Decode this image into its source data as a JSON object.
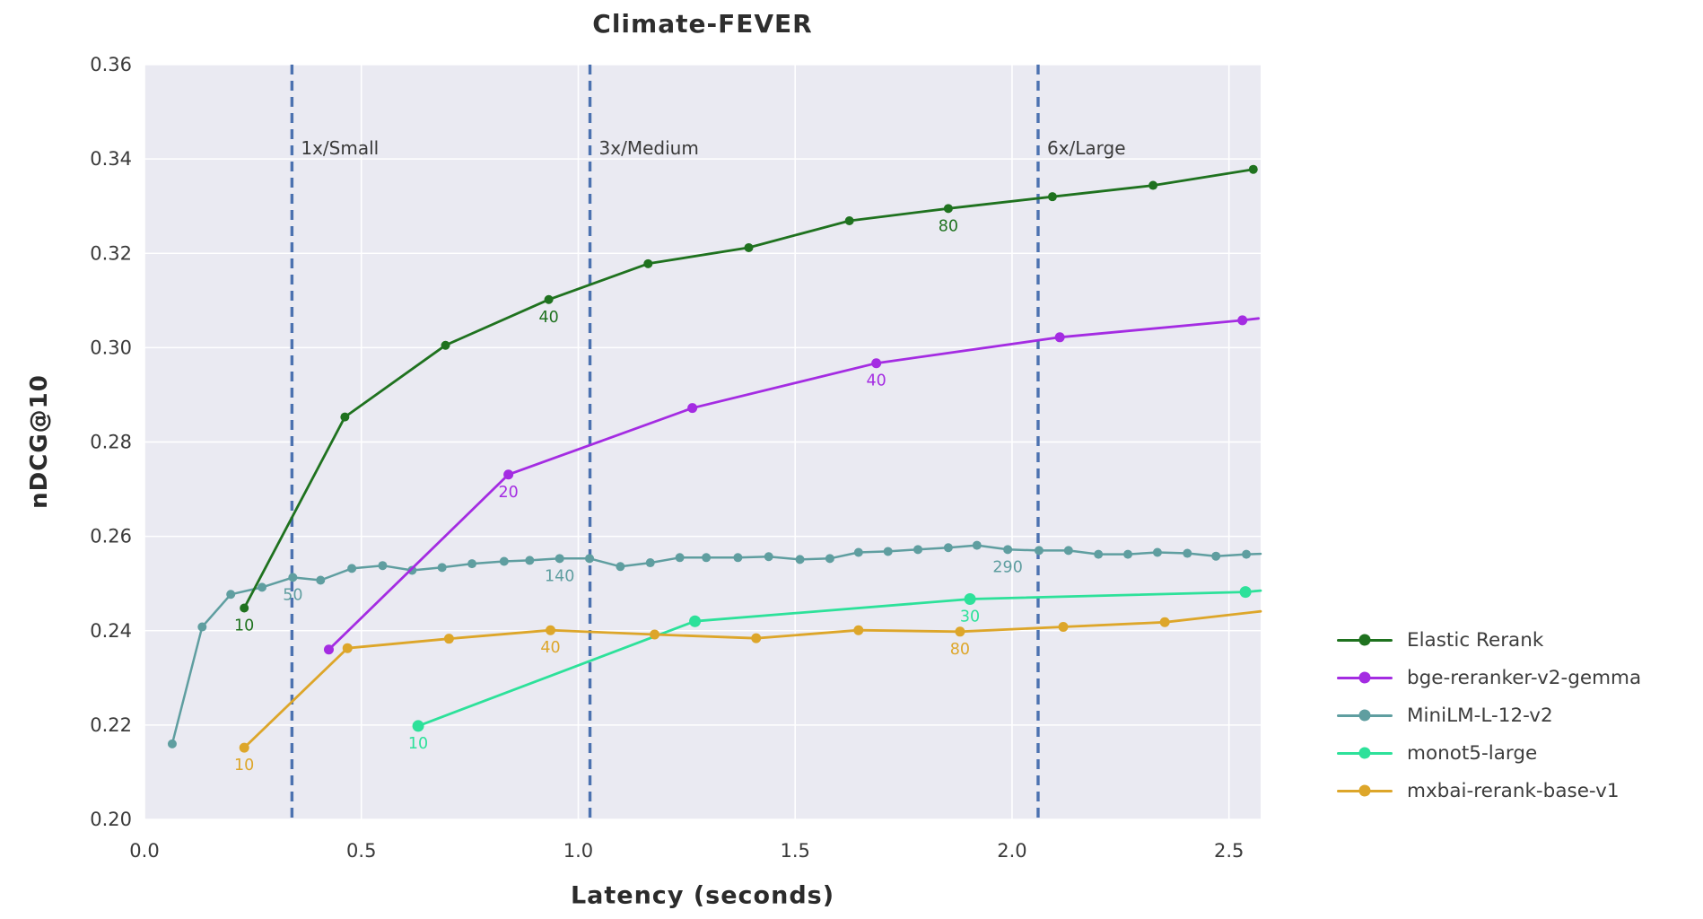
{
  "chart_data": {
    "type": "line",
    "title": "Climate-FEVER",
    "xlabel": "Latency (seconds)",
    "ylabel": "nDCG@10",
    "xlim": [
      0,
      2.573
    ],
    "ylim": [
      0.2,
      0.36
    ],
    "x_ticks": [
      {
        "v": 0.0,
        "label": "0.0"
      },
      {
        "v": 0.5,
        "label": "0.5"
      },
      {
        "v": 1.0,
        "label": "1.0"
      },
      {
        "v": 1.5,
        "label": "1.5"
      },
      {
        "v": 2.0,
        "label": "2.0"
      },
      {
        "v": 2.5,
        "label": "2.5"
      }
    ],
    "y_ticks": [
      {
        "v": 0.2,
        "label": "0.20"
      },
      {
        "v": 0.22,
        "label": "0.22"
      },
      {
        "v": 0.24,
        "label": "0.24"
      },
      {
        "v": 0.26,
        "label": "0.26"
      },
      {
        "v": 0.28,
        "label": "0.28"
      },
      {
        "v": 0.3,
        "label": "0.30"
      },
      {
        "v": 0.32,
        "label": "0.32"
      },
      {
        "v": 0.34,
        "label": "0.34"
      },
      {
        "v": 0.36,
        "label": "0.36"
      }
    ],
    "grid": true,
    "plot_bg": "#eaeaf2",
    "grid_color": "#ffffff",
    "tick_color": "#3a3a3a",
    "annotation_color": "#3a3a3a",
    "vline_color": "#4c72b0",
    "legend_position": "right",
    "vlines": [
      {
        "x": 0.34,
        "label": "1x/Small"
      },
      {
        "x": 1.027,
        "label": "3x/Medium"
      },
      {
        "x": 2.06,
        "label": "6x/Large"
      }
    ],
    "series": [
      {
        "name": "Elastic Rerank",
        "color": "#1f721f",
        "points": [
          [
            0.23,
            0.2448
          ],
          [
            0.462,
            0.2853
          ],
          [
            0.694,
            0.3005
          ],
          [
            0.932,
            0.3102
          ],
          [
            1.161,
            0.3178
          ],
          [
            1.393,
            0.3212
          ],
          [
            1.625,
            0.3269
          ],
          [
            1.853,
            0.3295
          ],
          [
            2.093,
            0.332
          ],
          [
            2.325,
            0.3344
          ],
          [
            2.556,
            0.3378
          ]
        ],
        "labels": [
          {
            "idx": 0,
            "text": "10"
          },
          {
            "idx": 3,
            "text": "40"
          },
          {
            "idx": 7,
            "text": "80"
          }
        ]
      },
      {
        "name": "bge-reranker-v2-gemma",
        "color": "#a42ce2",
        "points": [
          [
            0.425,
            0.236
          ],
          [
            0.839,
            0.2731
          ],
          [
            1.263,
            0.2872
          ],
          [
            1.687,
            0.2967
          ],
          [
            2.11,
            0.3022
          ],
          [
            2.531,
            0.3058
          ]
        ],
        "line_end": [
          2.568,
          0.3062
        ],
        "labels": [
          {
            "idx": 1,
            "text": "20"
          },
          {
            "idx": 3,
            "text": "40"
          }
        ]
      },
      {
        "name": "MiniLM-L-12-v2",
        "color": "#5f9ea0",
        "points": [
          [
            0.064,
            0.216
          ],
          [
            0.133,
            0.2408
          ],
          [
            0.199,
            0.2477
          ],
          [
            0.271,
            0.2492
          ],
          [
            0.342,
            0.2513
          ],
          [
            0.406,
            0.2507
          ],
          [
            0.478,
            0.2532
          ],
          [
            0.549,
            0.2538
          ],
          [
            0.617,
            0.2528
          ],
          [
            0.686,
            0.2534
          ],
          [
            0.755,
            0.2542
          ],
          [
            0.829,
            0.2547
          ],
          [
            0.888,
            0.2549
          ],
          [
            0.957,
            0.2553
          ],
          [
            1.026,
            0.2553
          ],
          [
            1.097,
            0.2536
          ],
          [
            1.166,
            0.2544
          ],
          [
            1.234,
            0.2555
          ],
          [
            1.295,
            0.2555
          ],
          [
            1.368,
            0.2555
          ],
          [
            1.439,
            0.2557
          ],
          [
            1.511,
            0.2551
          ],
          [
            1.58,
            0.2553
          ],
          [
            1.646,
            0.2566
          ],
          [
            1.714,
            0.2568
          ],
          [
            1.783,
            0.2572
          ],
          [
            1.853,
            0.2576
          ],
          [
            1.919,
            0.2581
          ],
          [
            1.99,
            0.2572
          ],
          [
            2.062,
            0.257
          ],
          [
            2.13,
            0.257
          ],
          [
            2.199,
            0.2562
          ],
          [
            2.267,
            0.2562
          ],
          [
            2.335,
            0.2566
          ],
          [
            2.404,
            0.2564
          ],
          [
            2.47,
            0.2558
          ],
          [
            2.54,
            0.2562
          ]
        ],
        "line_end": [
          2.573,
          0.2563
        ],
        "labels": [
          {
            "idx": 4,
            "text": "50"
          },
          {
            "idx": 13,
            "text": "140"
          },
          {
            "idx": 28,
            "text": "290"
          }
        ]
      },
      {
        "name": "monot5-large",
        "color": "#2de19a",
        "points": [
          [
            0.631,
            0.2198
          ],
          [
            1.269,
            0.242
          ],
          [
            1.903,
            0.2467
          ],
          [
            2.538,
            0.2482
          ]
        ],
        "line_end": [
          2.573,
          0.2485
        ],
        "labels": [
          {
            "idx": 0,
            "text": "10"
          },
          {
            "idx": 2,
            "text": "30"
          }
        ]
      },
      {
        "name": "mxbai-rerank-base-v1",
        "color": "#dda62a",
        "points": [
          [
            0.23,
            0.2152
          ],
          [
            0.468,
            0.2363
          ],
          [
            0.702,
            0.2383
          ],
          [
            0.936,
            0.2401
          ],
          [
            1.176,
            0.2392
          ],
          [
            1.41,
            0.2384
          ],
          [
            1.646,
            0.2401
          ],
          [
            1.88,
            0.2398
          ],
          [
            2.118,
            0.2408
          ],
          [
            2.352,
            0.2418
          ]
        ],
        "line_end": [
          2.573,
          0.2441
        ],
        "labels": [
          {
            "idx": 0,
            "text": "10"
          },
          {
            "idx": 3,
            "text": "40"
          },
          {
            "idx": 7,
            "text": "80"
          }
        ]
      }
    ]
  }
}
